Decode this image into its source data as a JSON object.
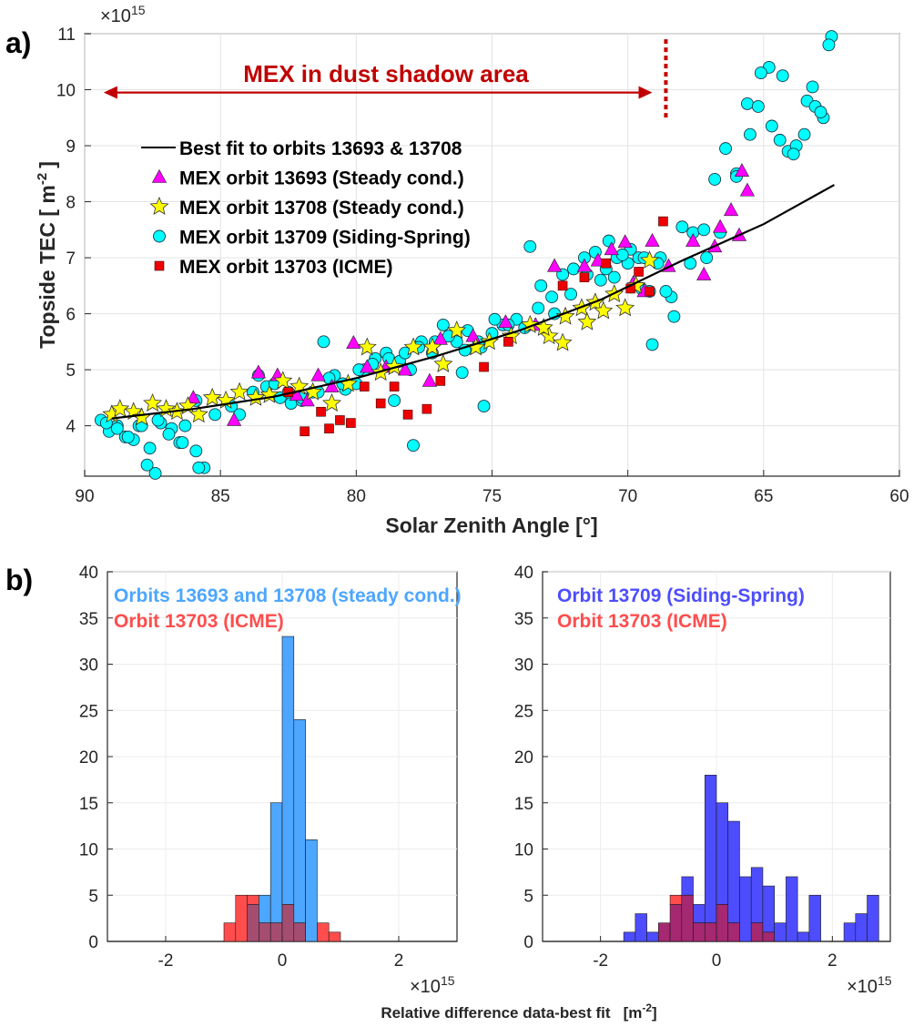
{
  "figure": {
    "panel_a_label": "a)",
    "panel_b_label": "b)",
    "colors": {
      "fit_line": "#000000",
      "orbit_13693": "#ff00ff",
      "orbit_13708": "#ffff00",
      "orbit_13709": "#00ffff",
      "orbit_13703": "#ee0000",
      "annotation": "#c00000",
      "steady_hist": "#4da6ff",
      "icme_hist": "#ff4d4d",
      "siding_hist": "#4d4dff",
      "overlap_left": "#a54d70",
      "overlap_right": "#a52870"
    }
  },
  "chart_data": [
    {
      "type": "scatter",
      "title": "",
      "xlabel": "Solar Zenith Angle [°]",
      "ylabel": "Topside TEC [ m -2 ]",
      "ylabel_main": "Topside TEC [ m",
      "ylabel_exp": "-2",
      "ylabel_close": "]",
      "y_exponent_base": "×10",
      "y_exponent_power": "15",
      "xlim": [
        90,
        60
      ],
      "ylim": [
        3.1,
        11
      ],
      "x_reversed": true,
      "xticks": [
        "90",
        "85",
        "80",
        "75",
        "70",
        "65",
        "60"
      ],
      "yticks": [
        "4",
        "5",
        "6",
        "7",
        "8",
        "9",
        "10",
        "11"
      ],
      "grid": true,
      "legend_position": "left, below annotation",
      "annotation": {
        "text": "MEX in dust shadow area",
        "arrow_from_sza": 89.3,
        "arrow_to_sza": 69.1,
        "y": 9.95,
        "dotted_line_sza": 68.6,
        "dotted_line_y": [
          9.5,
          10.9
        ]
      },
      "legend": [
        "Best fit to orbits 13693 & 13708",
        "MEX orbit 13693 (Steady cond.)",
        "MEX orbit 13708 (Steady cond.)",
        "MEX orbit 13709 (Siding-Spring)",
        "MEX orbit 13703 (ICME)"
      ],
      "series": [
        {
          "name": "Best fit to orbits 13693 & 13708",
          "kind": "line",
          "x": [
            89,
            86,
            83,
            80,
            77,
            74,
            71,
            68,
            65,
            62.4
          ],
          "y": [
            4.13,
            4.3,
            4.52,
            4.85,
            5.25,
            5.7,
            6.25,
            6.95,
            7.6,
            8.3
          ]
        },
        {
          "name": "MEX orbit 13693 (Steady cond.)",
          "kind": "triangle",
          "x": [
            86,
            84.5,
            83.6,
            82.9,
            82.2,
            81.8,
            81.4,
            80.9,
            80.1,
            79.6,
            78.9,
            78.2,
            77.3,
            76.9,
            75.7,
            74.5,
            73.4,
            72.7,
            71.6,
            71.1,
            70.6,
            70.1,
            69.8,
            69.4,
            69.1,
            68.5,
            67.6,
            67.2,
            66.8,
            66.6,
            66.2,
            65.9,
            65.8,
            65.6
          ],
          "y": [
            4.5,
            4.1,
            4.95,
            4.9,
            4.55,
            4.45,
            4.9,
            4.7,
            5.48,
            5.05,
            5.05,
            5.0,
            4.8,
            5.55,
            5.6,
            5.85,
            5.8,
            6.85,
            6.85,
            6.95,
            7.15,
            7.28,
            6.55,
            6.4,
            7.3,
            6.85,
            7.3,
            6.7,
            7.2,
            7.55,
            7.85,
            7.4,
            8.55,
            8.2
          ]
        },
        {
          "name": "MEX orbit 13708 (Steady cond.)",
          "kind": "star",
          "x": [
            89,
            88.7,
            88.2,
            87.9,
            87.5,
            87,
            86.6,
            86.2,
            85.8,
            85.3,
            84.8,
            84.3,
            83.7,
            83.2,
            82.7,
            82.1,
            81.6,
            80.9,
            80.3,
            79.6,
            79.1,
            78.6,
            77.9,
            77.2,
            76.8,
            76.3,
            75.6,
            75.1,
            74.3,
            73.6,
            72.9,
            72.3,
            71.7,
            71.2,
            70.9,
            70.5,
            70.1,
            69.7,
            69.2,
            73.1,
            72.4,
            71.5
          ],
          "y": [
            4.2,
            4.3,
            4.25,
            4.15,
            4.4,
            4.3,
            4.25,
            4.35,
            4.2,
            4.5,
            4.45,
            4.6,
            4.5,
            4.55,
            4.8,
            4.7,
            4.6,
            4.4,
            4.75,
            5.4,
            4.95,
            5.05,
            5.4,
            5.4,
            5.1,
            5.7,
            5.4,
            5.5,
            5.6,
            5.8,
            5.6,
            5.95,
            6.1,
            6.2,
            6.05,
            6.35,
            6.1,
            6.5,
            6.95,
            5.75,
            5.48,
            5.85
          ]
        },
        {
          "name": "MEX orbit 13709 (Siding-Spring)",
          "kind": "circle",
          "x": [
            89.4,
            89.1,
            88.8,
            88.5,
            88.2,
            88,
            87.6,
            87.4,
            87.2,
            86.8,
            86.5,
            86.3,
            85.9,
            85.6,
            85.2,
            84.3,
            83.8,
            83.3,
            82.8,
            82.4,
            82,
            81.6,
            81.2,
            80.8,
            80.4,
            80,
            79.7,
            79.3,
            78.9,
            78.4,
            78,
            77.6,
            77.2,
            76.8,
            76.3,
            75.9,
            75.4,
            75,
            74.6,
            74.1,
            73.6,
            73.2,
            72.8,
            72.4,
            72,
            71.6,
            71.2,
            70.8,
            70.4,
            70,
            69.6,
            69.2,
            68.8,
            68.4,
            68,
            67.6,
            67.2,
            66.8,
            66.4,
            66,
            65.6,
            65.2,
            64.8,
            64.4,
            64.1,
            63.8,
            63.4,
            63.1,
            62.8,
            62.5,
            89.2,
            88.8,
            88.4,
            87.9,
            87.3,
            86.9,
            86.4,
            85.8,
            84.6,
            83.6,
            83,
            82.5,
            82,
            81.4,
            81,
            80.5,
            79.9,
            79.4,
            78.8,
            78.2,
            77.7,
            77.1,
            76.6,
            76,
            75.5,
            74.9,
            74.4,
            73.8,
            73.3,
            72.7,
            72.1,
            71.5,
            71,
            70.5,
            69.9,
            69.4,
            68.9,
            68.3,
            67.7,
            67.1,
            66.6,
            66,
            65.5,
            65.1,
            64.7,
            64.3,
            63.9,
            63.5,
            63.2,
            62.9,
            62.6,
            70.7,
            70.2,
            69.5,
            69.1,
            68.6,
            75.3,
            76.1,
            77.9,
            78.6,
            87.7,
            85.9
          ],
          "y": [
            4.1,
            3.9,
            4.0,
            3.8,
            3.75,
            4.0,
            3.6,
            3.15,
            4.05,
            3.95,
            3.7,
            4.0,
            3.55,
            3.25,
            4.2,
            4.2,
            4.6,
            4.7,
            4.5,
            4.4,
            4.45,
            4.6,
            5.5,
            4.9,
            4.65,
            4.75,
            5.0,
            5.2,
            5.3,
            5.15,
            5.0,
            5.5,
            5.3,
            5.8,
            5.5,
            5.7,
            5.4,
            5.65,
            5.8,
            5.9,
            7.2,
            6.5,
            6.3,
            6.7,
            6.8,
            7.0,
            7.1,
            6.8,
            7.0,
            6.9,
            7.0,
            6.4,
            7.0,
            6.3,
            7.55,
            7.45,
            7.5,
            8.4,
            8.95,
            8.5,
            9.75,
            9.7,
            10.4,
            9.1,
            8.9,
            9.0,
            9.8,
            9.7,
            9.5,
            10.95,
            4.05,
            3.95,
            3.8,
            4.0,
            4.1,
            3.85,
            3.7,
            3.25,
            4.35,
            4.9,
            4.75,
            4.6,
            4.5,
            4.6,
            4.85,
            4.75,
            5.0,
            5.1,
            5.2,
            5.3,
            5.4,
            5.5,
            5.6,
            5.35,
            5.5,
            5.9,
            5.8,
            5.75,
            6.1,
            6.0,
            6.35,
            6.7,
            6.6,
            6.65,
            7.15,
            7.0,
            6.9,
            5.95,
            6.9,
            7.0,
            7.45,
            8.45,
            9.2,
            10.3,
            9.35,
            10.25,
            8.85,
            9.2,
            10.05,
            9.6,
            10.8,
            7.3,
            7.05,
            6.45,
            5.45,
            6.4,
            4.35,
            4.95,
            3.65,
            4.45,
            3.3,
            4.45
          ]
        },
        {
          "name": "MEX orbit 13703 (ICME)",
          "kind": "square",
          "x": [
            82.5,
            81.9,
            81.3,
            81,
            80.6,
            80.2,
            79.7,
            79.1,
            78.6,
            78.1,
            77.4,
            76.9,
            75.3,
            74.4,
            72.4,
            71.6,
            70.8,
            69.9,
            69.6,
            69.2,
            68.7
          ],
          "y": [
            4.6,
            3.9,
            4.25,
            3.95,
            4.1,
            4.05,
            4.7,
            4.4,
            4.7,
            4.2,
            4.3,
            4.8,
            5.05,
            5.5,
            6.5,
            6.65,
            6.9,
            6.45,
            6.75,
            6.4,
            7.65
          ]
        }
      ]
    },
    {
      "type": "bar",
      "subtype": "histogram",
      "xlabel": "",
      "ylabel": "",
      "xlim": [
        -3,
        3
      ],
      "ylim": [
        0,
        40
      ],
      "x_exponent_base": "×10",
      "x_exponent_power": "15",
      "xticks": [
        "-2",
        "0",
        "2"
      ],
      "yticks": [
        "0",
        "5",
        "10",
        "15",
        "20",
        "25",
        "30",
        "35",
        "40"
      ],
      "bin_width": 0.2,
      "legend": [
        "Orbits 13693 and 13708 (steady cond.)",
        "Orbit 13703 (ICME)"
      ],
      "series": [
        {
          "name": "Orbits 13693 and 13708 (steady cond.)",
          "bin_starts": [
            -0.6,
            -0.4,
            -0.2,
            0.0,
            0.2,
            0.4
          ],
          "values": [
            4,
            5,
            15,
            33,
            24,
            11
          ]
        },
        {
          "name": "Orbit 13703 (ICME)",
          "bin_starts": [
            -1.0,
            -0.8,
            -0.6,
            -0.4,
            -0.2,
            0.0,
            0.2,
            0.6,
            0.8
          ],
          "values": [
            2,
            5,
            5,
            2,
            2,
            4,
            2,
            2,
            1
          ]
        }
      ]
    },
    {
      "type": "bar",
      "subtype": "histogram",
      "xlabel": "",
      "ylabel": "",
      "xlim": [
        -3,
        3
      ],
      "ylim": [
        0,
        40
      ],
      "x_exponent_base": "×10",
      "x_exponent_power": "15",
      "xticks": [
        "-2",
        "0",
        "2"
      ],
      "yticks": [
        "0",
        "5",
        "10",
        "15",
        "20",
        "25",
        "30",
        "35",
        "40"
      ],
      "bin_width": 0.2,
      "legend": [
        "Orbit 13709 (Siding-Spring)",
        "Orbit 13703 (ICME)"
      ],
      "series": [
        {
          "name": "Orbit 13709 (Siding-Spring)",
          "bin_starts": [
            -1.6,
            -1.4,
            -1.2,
            -1.0,
            -0.8,
            -0.6,
            -0.4,
            -0.2,
            0.0,
            0.2,
            0.4,
            0.6,
            0.8,
            1.0,
            1.2,
            1.4,
            1.6,
            1.8,
            2.2,
            2.4,
            2.6
          ],
          "values": [
            1,
            3,
            1,
            2,
            4,
            7,
            4,
            18,
            15,
            13,
            7,
            8,
            6,
            2,
            7,
            1,
            5,
            0,
            2,
            3,
            5
          ]
        },
        {
          "name": "Orbit 13703 (ICME)",
          "bin_starts": [
            -1.0,
            -0.8,
            -0.6,
            -0.4,
            -0.2,
            0.0,
            0.2,
            0.6,
            0.8
          ],
          "values": [
            2,
            5,
            5,
            2,
            2,
            4,
            2,
            2,
            1
          ]
        }
      ]
    }
  ],
  "shared_xlabel": "Relative difference data-best fit",
  "shared_xlabel_unit_main": "[m",
  "shared_xlabel_unit_exp": "-2",
  "shared_xlabel_unit_close": "]"
}
